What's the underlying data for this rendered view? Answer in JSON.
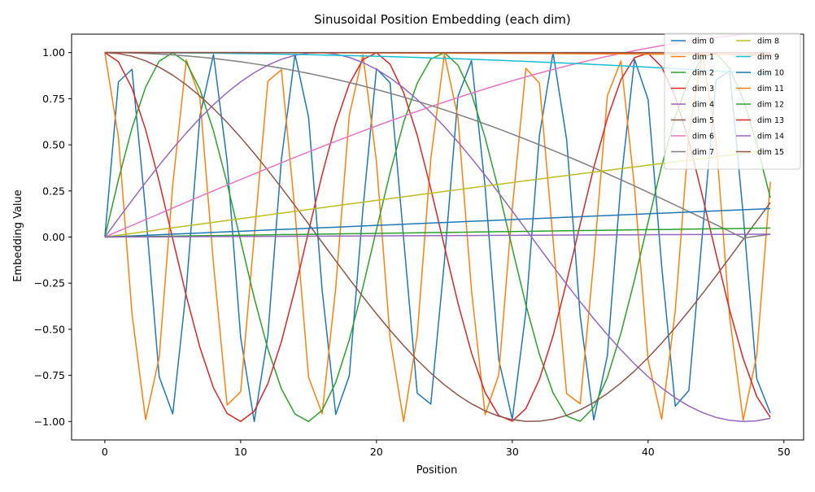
{
  "chart_data": {
    "type": "line",
    "title": "Sinusoidal Position Embedding (each dim)",
    "xlabel": "Position",
    "ylabel": "Embedding Value",
    "xlim": [
      -2.45,
      51.45
    ],
    "ylim": [
      -1.1,
      1.1
    ],
    "xticks": [
      0,
      10,
      20,
      30,
      40,
      50
    ],
    "xtick_labels": [
      "0",
      "10",
      "20",
      "30",
      "40",
      "50"
    ],
    "yticks": [
      -1.0,
      -0.75,
      -0.5,
      -0.25,
      0.0,
      0.25,
      0.5,
      0.75,
      1.0
    ],
    "ytick_labels": [
      "−1.00",
      "−0.75",
      "−0.50",
      "−0.25",
      "0.00",
      "0.25",
      "0.50",
      "0.75",
      "1.00"
    ],
    "grid": false,
    "legend_position": "upper-right",
    "legend_columns": 2,
    "x": [
      0,
      1,
      2,
      3,
      4,
      5,
      6,
      7,
      8,
      9,
      10,
      11,
      12,
      13,
      14,
      15,
      16,
      17,
      18,
      19,
      20,
      21,
      22,
      23,
      24,
      25,
      26,
      27,
      28,
      29,
      30,
      31,
      32,
      33,
      34,
      35,
      36,
      37,
      38,
      39,
      40,
      41,
      42,
      43,
      44,
      45,
      46,
      47,
      48,
      49
    ],
    "series": [
      {
        "name": "dim 0",
        "color": "#1f77b4",
        "values": [
          0.0,
          0.8415,
          0.9093,
          0.1411,
          -0.7568,
          -0.9589,
          -0.2794,
          0.657,
          0.9894,
          0.4121,
          -0.544,
          -1.0,
          -0.5366,
          0.4202,
          0.9906,
          0.6503,
          -0.2879,
          -0.9614,
          -0.751,
          0.1499,
          0.9129,
          0.8367,
          -0.0089,
          -0.8462,
          -0.9056,
          -0.1324,
          0.7626,
          0.9564,
          0.2709,
          -0.6636,
          -0.988,
          -0.404,
          0.5514,
          0.9999,
          0.5291,
          -0.4282,
          -0.9918,
          -0.6435,
          0.2964,
          0.9638,
          0.7451,
          -0.1586,
          -0.9165,
          -0.8318,
          0.0177,
          0.8509,
          0.9018,
          0.1236,
          -0.7683,
          -0.9538
        ]
      },
      {
        "name": "dim 1",
        "color": "#ff7f0e",
        "values": [
          1.0,
          0.5403,
          -0.4161,
          -0.99,
          -0.6536,
          0.2837,
          0.9602,
          0.7539,
          -0.1455,
          -0.9111,
          -0.8391,
          0.0044,
          0.8439,
          0.9074,
          0.1367,
          -0.7597,
          -0.9577,
          -0.2752,
          0.6603,
          0.9887,
          0.4081,
          -0.5477,
          -1.0,
          -0.5328,
          0.4242,
          0.9912,
          0.6469,
          -0.2921,
          -0.9626,
          -0.748,
          0.1543,
          0.9147,
          0.8342,
          -0.0133,
          -0.8486,
          -0.9037,
          -0.128,
          0.7654,
          0.9551,
          0.2666,
          -0.6669,
          -0.9875,
          -0.3999,
          0.5551,
          0.9998,
          0.5253,
          -0.4321,
          -0.9923,
          -0.6401,
          0.3006
        ]
      },
      {
        "name": "dim 2",
        "color": "#2ca02c",
        "values": [
          0.0,
          0.3111,
          0.5911,
          0.8126,
          0.9536,
          0.9998,
          0.947,
          0.801,
          0.5747,
          0.2917,
          -0.0202,
          -0.3299,
          -0.6063,
          -0.8235,
          -0.9594,
          -0.9999,
          -0.9397,
          -0.7881,
          -0.5571,
          -0.2721,
          0.0404,
          0.3488,
          0.6216,
          0.8341,
          0.965,
          0.9996,
          0.9319,
          0.7751,
          0.5393,
          0.2523,
          -0.0605,
          -0.3675,
          -0.6367,
          -0.8441,
          -0.9701,
          -0.9987,
          -0.9236,
          -0.7617,
          -0.5211,
          -0.2324,
          0.0806,
          0.386,
          0.6514,
          0.8538,
          0.9751,
          0.9976,
          0.9148,
          0.7477,
          0.5024,
          0.2124
        ]
      },
      {
        "name": "dim 3",
        "color": "#d62728",
        "values": [
          1.0,
          0.9504,
          0.8066,
          0.5828,
          0.301,
          -0.0101,
          -0.3205,
          -0.5987,
          -0.8181,
          -0.9565,
          -0.9998,
          -0.944,
          -0.795,
          -0.5672,
          -0.282,
          0.0303,
          0.3393,
          0.6141,
          0.8305,
          0.9624,
          0.9992,
          0.9372,
          0.7832,
          0.5518,
          0.2623,
          -0.0504,
          -0.3582,
          -0.6291,
          -0.8425,
          -0.9677,
          -0.9982,
          -0.9298,
          -0.7707,
          -0.5362,
          -0.2427,
          0.0706,
          0.3768,
          0.644,
          0.8535,
          0.9727,
          0.9967,
          0.9225,
          0.7585,
          0.5207,
          0.2229,
          -0.0907,
          -0.3953,
          -0.6586,
          -0.8644,
          -0.9776
        ]
      },
      {
        "name": "dim 4",
        "color": "#9467bd",
        "values": [
          0.0,
          0.0998,
          0.1987,
          0.2955,
          0.3894,
          0.4794,
          0.5646,
          0.6442,
          0.7174,
          0.7833,
          0.8415,
          0.8912,
          0.932,
          0.9636,
          0.9854,
          0.9975,
          0.9996,
          0.9917,
          0.9738,
          0.9463,
          0.9093,
          0.8632,
          0.8085,
          0.7457,
          0.6755,
          0.5985,
          0.5155,
          0.4274,
          0.335,
          0.2392,
          0.1411,
          0.0416,
          -0.0584,
          -0.1577,
          -0.2555,
          -0.3508,
          -0.4425,
          -0.5298,
          -0.6119,
          -0.6878,
          -0.7568,
          -0.8183,
          -0.8716,
          -0.9162,
          -0.9516,
          -0.9775,
          -0.9937,
          -0.9999,
          -0.9962,
          -0.9825
        ]
      },
      {
        "name": "dim 5",
        "color": "#8c564b",
        "values": [
          1.0,
          0.995,
          0.9801,
          0.9553,
          0.9211,
          0.8776,
          0.8253,
          0.7648,
          0.6967,
          0.6216,
          0.5403,
          0.4536,
          0.3624,
          0.2675,
          0.17,
          0.0707,
          -0.0292,
          -0.1288,
          -0.2272,
          -0.3233,
          -0.4161,
          -0.5048,
          -0.5885,
          -0.6663,
          -0.7374,
          -0.8011,
          -0.8569,
          -0.9041,
          -0.9422,
          -0.971,
          -0.99,
          -0.9991,
          -0.9983,
          -0.9875,
          -0.9668,
          -0.9365,
          -0.8968,
          -0.8481,
          -0.791,
          -0.7259,
          -0.6536,
          -0.5748,
          -0.4903,
          -0.4008,
          -0.3073,
          -0.2108,
          -0.1122,
          -0.0124,
          0.0875,
          0.1865
        ]
      },
      {
        "name": "dim 6",
        "color": "#e377c2",
        "values": [
          0.0,
          0.0316,
          0.0632,
          0.0947,
          0.1262,
          0.1576,
          0.1889,
          0.22,
          0.251,
          0.2818,
          0.3124,
          0.3427,
          0.3729,
          0.4027,
          0.4323,
          0.4615,
          0.4905,
          0.519,
          0.5472,
          0.575,
          0.6024,
          0.6293,
          0.6557,
          0.6816,
          0.707,
          0.7319,
          0.7562,
          0.7799,
          0.803,
          0.8255,
          0.8473,
          0.8684,
          0.8888,
          0.9085,
          0.9275,
          0.9457,
          0.9631,
          0.9798,
          0.9956,
          1.0106,
          1.0247,
          1.0379,
          1.0503,
          1.0617,
          1.0722,
          1.0818,
          1.0904,
          1.0981,
          1.1048,
          1.1105
        ]
      },
      {
        "name": "dim 7",
        "color": "#7f7f7f",
        "values": [
          1.0,
          0.9995,
          0.998,
          0.9955,
          0.992,
          0.9875,
          0.9821,
          0.9755,
          0.9681,
          0.9597,
          0.95,
          0.9394,
          0.9279,
          0.9153,
          0.9017,
          0.8872,
          0.8716,
          0.8552,
          0.8378,
          0.8194,
          0.8,
          0.7798,
          0.7586,
          0.7365,
          0.7135,
          0.6897,
          0.665,
          0.6395,
          0.6131,
          0.586,
          0.558,
          0.5294,
          0.5,
          0.4699,
          0.4392,
          0.4078,
          0.3759,
          0.3433,
          0.3103,
          0.2767,
          0.2427,
          0.2082,
          0.1733,
          0.1381,
          0.1026,
          0.0668,
          0.0308,
          -0.0054,
          0.005,
          0.015
        ]
      },
      {
        "name": "dim 8",
        "color": "#bcbd22",
        "values": [
          0.0,
          0.01,
          0.02,
          0.03,
          0.04,
          0.05,
          0.06,
          0.0699,
          0.0799,
          0.0899,
          0.0998,
          0.1098,
          0.1197,
          0.1296,
          0.1395,
          0.1494,
          0.1593,
          0.1692,
          0.179,
          0.1889,
          0.1987,
          0.2085,
          0.2182,
          0.228,
          0.2377,
          0.2474,
          0.2571,
          0.2667,
          0.2764,
          0.286,
          0.2955,
          0.3051,
          0.3146,
          0.324,
          0.3335,
          0.3429,
          0.3523,
          0.3616,
          0.3709,
          0.3802,
          0.3894,
          0.3986,
          0.4078,
          0.4169,
          0.4259,
          0.435,
          0.4439,
          0.4529,
          0.4618,
          0.4706
        ]
      },
      {
        "name": "dim 9",
        "color": "#17becf",
        "values": [
          1.0,
          1.0,
          0.9998,
          0.9996,
          0.9992,
          0.9988,
          0.9982,
          0.9976,
          0.9968,
          0.996,
          0.995,
          0.994,
          0.9928,
          0.9916,
          0.9902,
          0.9888,
          0.9872,
          0.9856,
          0.9838,
          0.982,
          0.9801,
          0.978,
          0.9759,
          0.9737,
          0.9713,
          0.9689,
          0.9664,
          0.9638,
          0.9611,
          0.9582,
          0.9553,
          0.9523,
          0.9492,
          0.946,
          0.9428,
          0.9394,
          0.9359,
          0.9323,
          0.9287,
          0.9249,
          0.9211,
          0.9171,
          0.9131,
          0.909,
          0.9048,
          0.9004,
          0.8961,
          0.8916,
          0.887,
          0.8823
        ]
      },
      {
        "name": "dim 10",
        "color": "#1f77b4",
        "values": [
          0.0,
          0.0032,
          0.0063,
          0.0095,
          0.0126,
          0.0158,
          0.019,
          0.0221,
          0.0253,
          0.0285,
          0.0316,
          0.0348,
          0.0379,
          0.0411,
          0.0443,
          0.0474,
          0.0506,
          0.0537,
          0.0569,
          0.0601,
          0.0632,
          0.0664,
          0.0695,
          0.0727,
          0.0758,
          0.079,
          0.0821,
          0.0853,
          0.0884,
          0.0916,
          0.0947,
          0.0979,
          0.101,
          0.1042,
          0.1073,
          0.1105,
          0.1136,
          0.1168,
          0.1199,
          0.123,
          0.1262,
          0.1293,
          0.1324,
          0.1356,
          0.1387,
          0.1418,
          0.1449,
          0.1481,
          0.1512,
          0.1543
        ]
      },
      {
        "name": "dim 11",
        "color": "#ff7f0e",
        "values": [
          1.0,
          1.0,
          1.0,
          1.0,
          0.9999,
          0.9999,
          0.9998,
          0.9998,
          0.9997,
          0.9996,
          0.9995,
          0.9994,
          0.9993,
          0.9992,
          0.999,
          0.9989,
          0.9987,
          0.9986,
          0.9984,
          0.9982,
          0.998,
          0.9978,
          0.9976,
          0.9974,
          0.9971,
          0.9969,
          0.9966,
          0.9964,
          0.9961,
          0.9958,
          0.9955,
          0.9952,
          0.9949,
          0.9946,
          0.9942,
          0.9939,
          0.9935,
          0.9932,
          0.9928,
          0.9924,
          0.992,
          0.9916,
          0.9912,
          0.9908,
          0.9904,
          0.9899,
          0.9895,
          0.989,
          0.9886,
          0.9881
        ]
      },
      {
        "name": "dim 12",
        "color": "#2ca02c",
        "values": [
          0.0,
          0.001,
          0.002,
          0.003,
          0.004,
          0.005,
          0.006,
          0.007,
          0.008,
          0.009,
          0.01,
          0.011,
          0.012,
          0.013,
          0.014,
          0.015,
          0.016,
          0.017,
          0.018,
          0.019,
          0.02,
          0.021,
          0.022,
          0.023,
          0.024,
          0.025,
          0.026,
          0.027,
          0.028,
          0.029,
          0.03,
          0.031,
          0.032,
          0.033,
          0.034,
          0.035,
          0.036,
          0.037,
          0.038,
          0.039,
          0.04,
          0.041,
          0.042,
          0.043,
          0.044,
          0.045,
          0.046,
          0.047,
          0.048,
          0.049
        ]
      },
      {
        "name": "dim 13",
        "color": "#d62728",
        "values": [
          1.0,
          1.0,
          1.0,
          1.0,
          1.0,
          1.0,
          1.0,
          1.0,
          1.0,
          1.0,
          1.0,
          0.9999,
          0.9999,
          0.9999,
          0.9999,
          0.9999,
          0.9999,
          0.9999,
          0.9998,
          0.9998,
          0.9998,
          0.9998,
          0.9998,
          0.9997,
          0.9997,
          0.9997,
          0.9997,
          0.9996,
          0.9996,
          0.9996,
          0.9996,
          0.9995,
          0.9995,
          0.9995,
          0.9994,
          0.9994,
          0.9994,
          0.9993,
          0.9993,
          0.9992,
          0.9992,
          0.9992,
          0.9991,
          0.9991,
          0.999,
          0.999,
          0.9989,
          0.9989,
          0.9988,
          0.9988
        ]
      },
      {
        "name": "dim 14",
        "color": "#9467bd",
        "values": [
          0.0,
          0.0003,
          0.0006,
          0.0009,
          0.0013,
          0.0016,
          0.0019,
          0.0022,
          0.0025,
          0.0028,
          0.0032,
          0.0035,
          0.0038,
          0.0041,
          0.0044,
          0.0047,
          0.0051,
          0.0054,
          0.0057,
          0.006,
          0.0063,
          0.0066,
          0.007,
          0.0073,
          0.0076,
          0.0079,
          0.0082,
          0.0085,
          0.0089,
          0.0092,
          0.0095,
          0.0098,
          0.0101,
          0.0104,
          0.0108,
          0.0111,
          0.0114,
          0.0117,
          0.012,
          0.0123,
          0.0126,
          0.013,
          0.0133,
          0.0136,
          0.0139,
          0.0142,
          0.0145,
          0.0149,
          0.0152,
          0.0155
        ]
      },
      {
        "name": "dim 15",
        "color": "#8c564b",
        "values": [
          1.0,
          1.0,
          1.0,
          1.0,
          1.0,
          1.0,
          1.0,
          1.0,
          1.0,
          1.0,
          1.0,
          1.0,
          1.0,
          1.0,
          1.0,
          1.0,
          1.0,
          1.0,
          1.0,
          1.0,
          1.0,
          1.0,
          1.0,
          1.0,
          1.0,
          1.0,
          1.0,
          1.0,
          1.0,
          1.0,
          1.0,
          1.0,
          1.0,
          1.0,
          1.0,
          1.0,
          1.0,
          1.0,
          1.0,
          1.0,
          1.0,
          1.0,
          1.0,
          1.0,
          1.0,
          1.0,
          1.0,
          1.0,
          1.0,
          1.0
        ]
      }
    ]
  }
}
